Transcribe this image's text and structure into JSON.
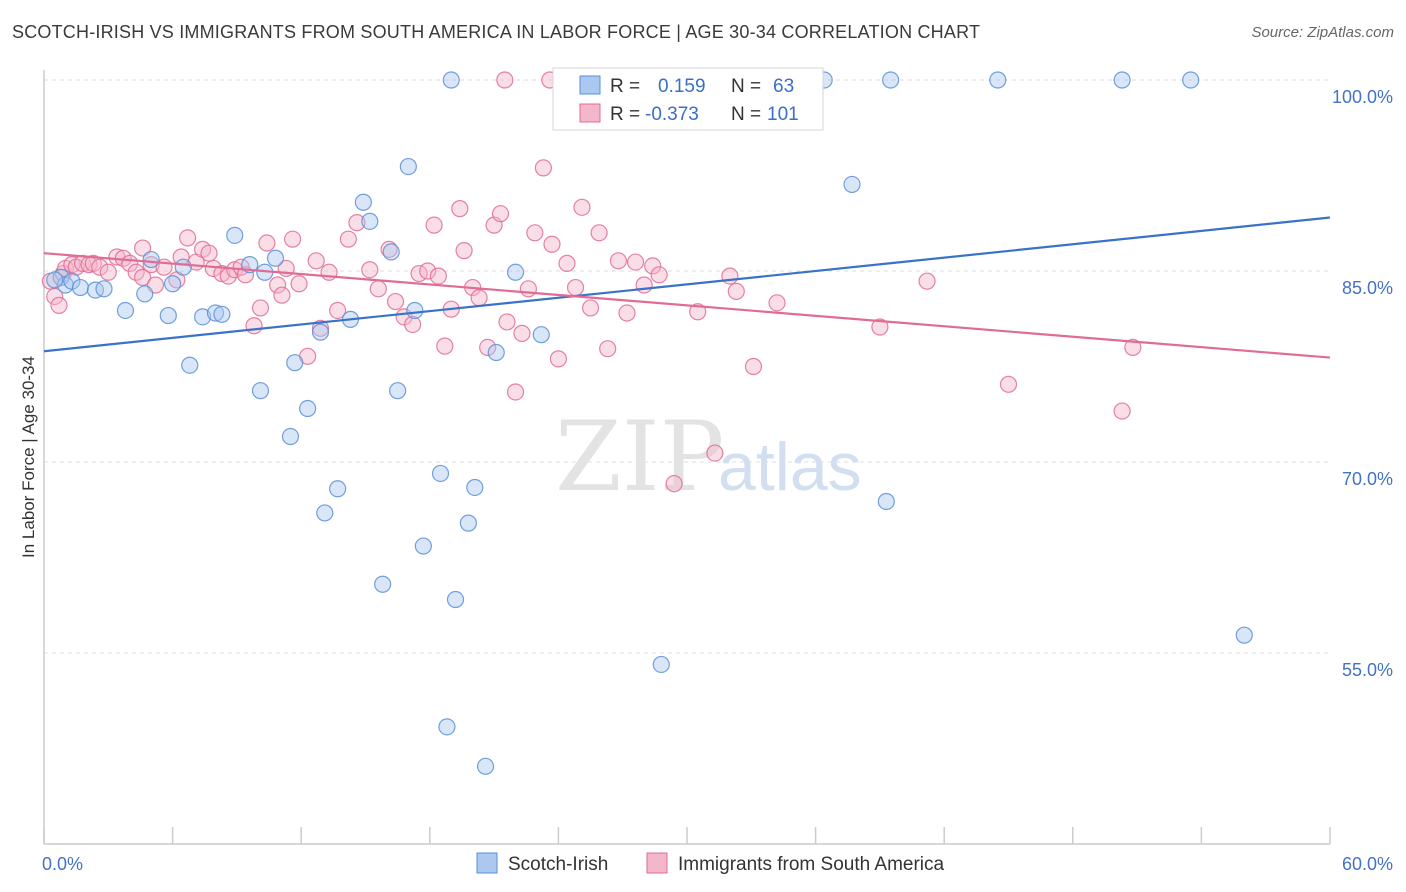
{
  "title": "SCOTCH-IRISH VS IMMIGRANTS FROM SOUTH AMERICA IN LABOR FORCE | AGE 30-34 CORRELATION CHART",
  "source": "Source: ZipAtlas.com",
  "watermark": {
    "zip": "ZIP",
    "atlas": "atlas"
  },
  "chart_data": {
    "type": "scatter",
    "title": "SCOTCH-IRISH VS IMMIGRANTS FROM SOUTH AMERICA IN LABOR FORCE | AGE 30-34 CORRELATION CHART",
    "xlabel": "",
    "ylabel": "In Labor Force | Age 30-34",
    "xlim": [
      0,
      60
    ],
    "ylim": [
      42,
      101.5
    ],
    "x_tick_labels": [
      "0.0%",
      "60.0%"
    ],
    "y_ticks": [
      55,
      70,
      85,
      100
    ],
    "y_tick_labels": [
      "55.0%",
      "70.0%",
      "85.0%",
      "100.0%"
    ],
    "grid": "horizontal dashed",
    "legend_position": "top-center",
    "series": [
      {
        "name": "Scotch-Irish",
        "color": "#5b8fd6",
        "fill": "#aac8f0",
        "R": "0.159",
        "N": "63",
        "trend": {
          "x": [
            0,
            60
          ],
          "y": [
            78.7,
            89.2
          ]
        },
        "points": [
          [
            0.8,
            84.5
          ],
          [
            1.0,
            83.9
          ],
          [
            1.3,
            84.2
          ],
          [
            1.7,
            83.7
          ],
          [
            2.4,
            83.5
          ],
          [
            2.8,
            83.6
          ],
          [
            3.8,
            81.9
          ],
          [
            4.7,
            83.2
          ],
          [
            5.0,
            85.9
          ],
          [
            6.0,
            84.0
          ],
          [
            5.8,
            81.5
          ],
          [
            6.5,
            85.3
          ],
          [
            6.8,
            77.6
          ],
          [
            7.4,
            81.4
          ],
          [
            8.0,
            81.7
          ],
          [
            8.3,
            81.6
          ],
          [
            8.9,
            87.8
          ],
          [
            9.6,
            85.5
          ],
          [
            10.1,
            75.6
          ],
          [
            10.3,
            84.9
          ],
          [
            10.8,
            86.0
          ],
          [
            11.5,
            72.0
          ],
          [
            11.7,
            77.8
          ],
          [
            12.3,
            74.2
          ],
          [
            12.9,
            80.2
          ],
          [
            13.7,
            67.9
          ],
          [
            13.1,
            66.0
          ],
          [
            14.3,
            81.2
          ],
          [
            14.9,
            90.4
          ],
          [
            15.2,
            88.9
          ],
          [
            15.8,
            60.4
          ],
          [
            16.2,
            86.5
          ],
          [
            16.5,
            75.6
          ],
          [
            17.0,
            93.2
          ],
          [
            17.3,
            81.9
          ],
          [
            17.7,
            63.4
          ],
          [
            18.5,
            69.1
          ],
          [
            18.8,
            49.2
          ],
          [
            19.2,
            59.2
          ],
          [
            19.8,
            65.2
          ],
          [
            20.1,
            68.0
          ],
          [
            20.6,
            46.1
          ],
          [
            21.1,
            78.6
          ],
          [
            22.0,
            84.9
          ],
          [
            23.2,
            80.0
          ],
          [
            19.0,
            100.0
          ],
          [
            28.5,
            100.0
          ],
          [
            26.5,
            100.0
          ],
          [
            33.3,
            100.0
          ],
          [
            34.5,
            100.0
          ],
          [
            28.8,
            54.1
          ],
          [
            36.4,
            100.0
          ],
          [
            37.7,
            91.8
          ],
          [
            39.5,
            100.0
          ],
          [
            39.3,
            66.9
          ],
          [
            44.5,
            100.0
          ],
          [
            50.3,
            100.0
          ],
          [
            53.5,
            100.0
          ],
          [
            56.0,
            56.4
          ],
          [
            25.5,
            100.0
          ],
          [
            27.5,
            100.0
          ],
          [
            31.3,
            100.0
          ],
          [
            0.5,
            84.3
          ]
        ]
      },
      {
        "name": "Immigrants from South America",
        "color": "#e06c95",
        "fill": "#f4b6ca",
        "R": "-0.373",
        "N": "101",
        "trend": {
          "x": [
            0,
            60
          ],
          "y": [
            86.4,
            78.2
          ]
        },
        "points": [
          [
            0.3,
            84.2
          ],
          [
            0.5,
            83.0
          ],
          [
            0.9,
            84.8
          ],
          [
            1.0,
            85.2
          ],
          [
            1.3,
            85.5
          ],
          [
            1.5,
            85.3
          ],
          [
            1.8,
            85.6
          ],
          [
            2.1,
            85.5
          ],
          [
            2.3,
            85.6
          ],
          [
            2.6,
            85.3
          ],
          [
            3.0,
            84.9
          ],
          [
            3.4,
            86.1
          ],
          [
            3.7,
            86.0
          ],
          [
            4.0,
            85.6
          ],
          [
            4.3,
            84.9
          ],
          [
            4.6,
            84.5
          ],
          [
            4.6,
            86.8
          ],
          [
            5.0,
            85.5
          ],
          [
            5.2,
            83.9
          ],
          [
            5.6,
            85.3
          ],
          [
            6.2,
            84.3
          ],
          [
            6.4,
            86.1
          ],
          [
            6.7,
            87.6
          ],
          [
            7.1,
            85.7
          ],
          [
            7.4,
            86.7
          ],
          [
            7.7,
            86.4
          ],
          [
            7.9,
            85.2
          ],
          [
            8.3,
            84.8
          ],
          [
            8.6,
            84.6
          ],
          [
            8.9,
            85.1
          ],
          [
            9.2,
            85.3
          ],
          [
            9.4,
            84.7
          ],
          [
            9.8,
            80.7
          ],
          [
            10.1,
            82.1
          ],
          [
            10.4,
            87.2
          ],
          [
            10.9,
            83.9
          ],
          [
            11.1,
            83.1
          ],
          [
            11.3,
            85.2
          ],
          [
            11.6,
            87.5
          ],
          [
            11.9,
            84.0
          ],
          [
            12.3,
            78.3
          ],
          [
            12.7,
            85.8
          ],
          [
            12.9,
            80.5
          ],
          [
            13.3,
            84.9
          ],
          [
            13.7,
            81.9
          ],
          [
            14.2,
            87.5
          ],
          [
            14.6,
            88.8
          ],
          [
            15.2,
            85.1
          ],
          [
            15.6,
            83.6
          ],
          [
            16.1,
            86.7
          ],
          [
            16.4,
            82.6
          ],
          [
            16.8,
            81.4
          ],
          [
            17.2,
            80.8
          ],
          [
            17.5,
            84.8
          ],
          [
            17.9,
            85.0
          ],
          [
            18.2,
            88.6
          ],
          [
            18.4,
            84.6
          ],
          [
            18.7,
            79.1
          ],
          [
            19.0,
            82.0
          ],
          [
            19.4,
            89.9
          ],
          [
            19.6,
            86.6
          ],
          [
            20.0,
            83.7
          ],
          [
            20.3,
            82.9
          ],
          [
            20.7,
            79.0
          ],
          [
            21.0,
            88.6
          ],
          [
            21.3,
            89.5
          ],
          [
            21.6,
            81.0
          ],
          [
            22.0,
            75.5
          ],
          [
            22.3,
            80.1
          ],
          [
            22.6,
            83.6
          ],
          [
            22.9,
            88.0
          ],
          [
            23.3,
            93.1
          ],
          [
            23.7,
            87.1
          ],
          [
            24.0,
            78.1
          ],
          [
            24.4,
            85.6
          ],
          [
            24.8,
            83.7
          ],
          [
            25.1,
            90.0
          ],
          [
            25.5,
            82.1
          ],
          [
            25.9,
            88.0
          ],
          [
            26.3,
            78.9
          ],
          [
            26.8,
            85.8
          ],
          [
            27.2,
            81.7
          ],
          [
            27.6,
            85.7
          ],
          [
            28.0,
            83.9
          ],
          [
            28.4,
            85.4
          ],
          [
            28.7,
            84.7
          ],
          [
            29.4,
            68.3
          ],
          [
            30.5,
            81.8
          ],
          [
            31.3,
            70.7
          ],
          [
            32.0,
            84.6
          ],
          [
            32.3,
            83.4
          ],
          [
            33.1,
            77.5
          ],
          [
            34.2,
            82.5
          ],
          [
            39.0,
            80.6
          ],
          [
            41.2,
            84.2
          ],
          [
            45.0,
            76.1
          ],
          [
            50.3,
            74.0
          ],
          [
            50.8,
            79.0
          ],
          [
            23.6,
            100.0
          ],
          [
            21.5,
            100.0
          ],
          [
            0.7,
            82.3
          ]
        ]
      }
    ]
  }
}
